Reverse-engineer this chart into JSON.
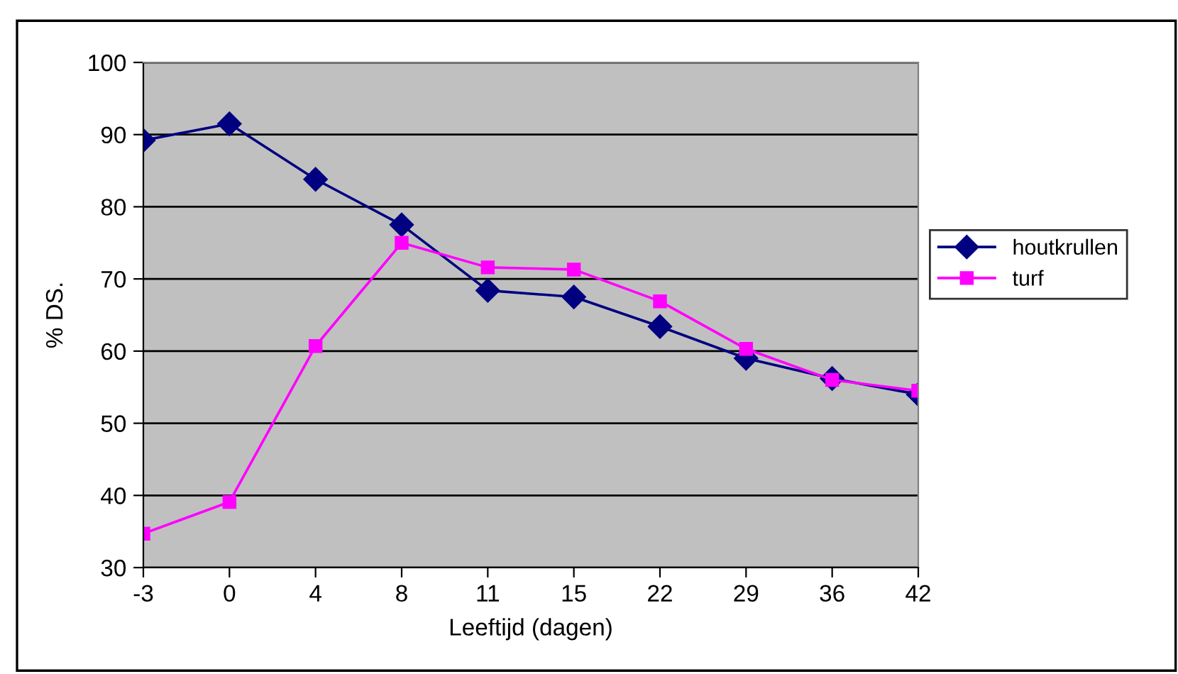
{
  "chart_data": {
    "type": "line",
    "xlabel": "Leeftijd (dagen)",
    "ylabel": "% DS.",
    "categories": [
      "-3",
      "0",
      "4",
      "8",
      "11",
      "15",
      "22",
      "29",
      "36",
      "42"
    ],
    "series": [
      {
        "name": "houtkrullen",
        "color": "#000080",
        "marker": "diamond",
        "values": [
          89.2,
          91.5,
          83.8,
          77.5,
          68.4,
          67.5,
          63.4,
          59.0,
          56.2,
          54.0
        ]
      },
      {
        "name": "turf",
        "color": "#ff00ff",
        "marker": "square",
        "values": [
          34.7,
          39.1,
          60.7,
          75.0,
          71.6,
          71.3,
          66.9,
          60.3,
          56.0,
          54.5
        ]
      }
    ],
    "ylim": [
      30,
      100
    ],
    "yticks": [
      30,
      40,
      50,
      60,
      70,
      80,
      90,
      100
    ],
    "grid": "y",
    "legend": "right",
    "line_style": "solid"
  }
}
